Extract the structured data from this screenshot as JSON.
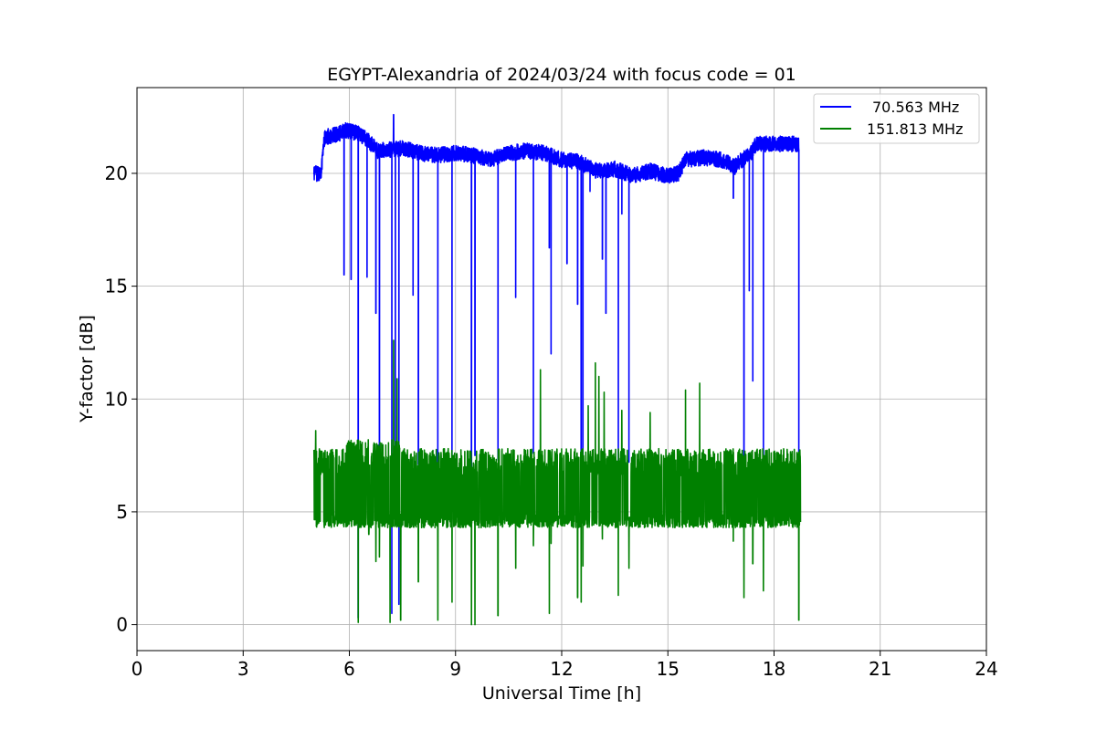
{
  "chart_data": {
    "type": "line",
    "title": "EGYPT-Alexandria of 2024/03/24 with focus code = 01",
    "xlabel": "Universal Time [h]",
    "ylabel": "Y-factor [dB]",
    "xlim": [
      0,
      24
    ],
    "ylim": [
      -1.15,
      23.8
    ],
    "xticks": [
      0,
      3,
      6,
      9,
      12,
      15,
      18,
      21,
      24
    ],
    "yticks": [
      0,
      5,
      10,
      15,
      20
    ],
    "grid": true,
    "legend_position": "top-right",
    "series": [
      {
        "name": "70.563 MHz",
        "color": "#0000ff",
        "baseline": [
          [
            5.0,
            20.0
          ],
          [
            5.2,
            20.0
          ],
          [
            5.3,
            21.6
          ],
          [
            5.6,
            21.7
          ],
          [
            5.9,
            21.9
          ],
          [
            6.2,
            21.8
          ],
          [
            6.5,
            21.5
          ],
          [
            6.8,
            21.0
          ],
          [
            7.5,
            21.1
          ],
          [
            8.0,
            20.9
          ],
          [
            8.5,
            20.8
          ],
          [
            9.0,
            20.9
          ],
          [
            9.5,
            20.8
          ],
          [
            10.0,
            20.6
          ],
          [
            10.5,
            20.9
          ],
          [
            11.0,
            21.0
          ],
          [
            11.5,
            20.9
          ],
          [
            12.0,
            20.6
          ],
          [
            12.5,
            20.5
          ],
          [
            13.0,
            20.1
          ],
          [
            13.5,
            20.2
          ],
          [
            14.0,
            19.9
          ],
          [
            14.5,
            20.1
          ],
          [
            15.0,
            19.9
          ],
          [
            15.3,
            20.0
          ],
          [
            15.5,
            20.6
          ],
          [
            16.0,
            20.7
          ],
          [
            16.5,
            20.6
          ],
          [
            16.9,
            20.3
          ],
          [
            17.0,
            20.5
          ],
          [
            17.3,
            20.8
          ],
          [
            17.5,
            21.3
          ],
          [
            18.0,
            21.3
          ],
          [
            18.7,
            21.3
          ]
        ],
        "noise_db": 0.35,
        "dips": [
          [
            5.85,
            15.5
          ],
          [
            6.05,
            15.3
          ],
          [
            6.25,
            0.3
          ],
          [
            6.5,
            15.4
          ],
          [
            6.75,
            13.8
          ],
          [
            6.85,
            7.3
          ],
          [
            7.2,
            0.5
          ],
          [
            7.3,
            7.0
          ],
          [
            7.4,
            0.9
          ],
          [
            7.8,
            14.6
          ],
          [
            7.95,
            7.1
          ],
          [
            8.5,
            7.0
          ],
          [
            8.9,
            7.4
          ],
          [
            9.45,
            7.0
          ],
          [
            9.55,
            7.5
          ],
          [
            10.2,
            7.3
          ],
          [
            10.7,
            14.5
          ],
          [
            11.2,
            7.6
          ],
          [
            11.65,
            16.7
          ],
          [
            11.7,
            12.0
          ],
          [
            12.15,
            16.0
          ],
          [
            12.45,
            14.2
          ],
          [
            12.55,
            7.6
          ],
          [
            12.6,
            7.0
          ],
          [
            12.8,
            19.2
          ],
          [
            13.15,
            16.2
          ],
          [
            13.25,
            13.8
          ],
          [
            13.6,
            7.1
          ],
          [
            13.7,
            18.2
          ],
          [
            13.9,
            7.2
          ],
          [
            16.85,
            18.9
          ],
          [
            17.15,
            7.3
          ],
          [
            17.3,
            14.8
          ],
          [
            17.4,
            10.8
          ],
          [
            17.7,
            7.3
          ],
          [
            18.7,
            7.1
          ]
        ],
        "spike": [
          7.25,
          22.6
        ]
      },
      {
        "name": "151.813 MHz",
        "color": "#008000",
        "range": [
          5.0,
          18.75
        ],
        "low_level_db": 4.6,
        "high_level_db": 7.2,
        "dips": [
          [
            6.25,
            0.1
          ],
          [
            6.55,
            4.0
          ],
          [
            6.75,
            2.8
          ],
          [
            6.85,
            3.0
          ],
          [
            7.15,
            0.1
          ],
          [
            7.25,
            2.2
          ],
          [
            7.45,
            0.2
          ],
          [
            7.95,
            1.9
          ],
          [
            8.5,
            0.2
          ],
          [
            8.9,
            1.0
          ],
          [
            9.45,
            0.0
          ],
          [
            9.55,
            0.0
          ],
          [
            10.2,
            0.4
          ],
          [
            10.7,
            2.5
          ],
          [
            11.2,
            3.5
          ],
          [
            11.65,
            0.5
          ],
          [
            11.7,
            3.6
          ],
          [
            12.45,
            1.2
          ],
          [
            12.55,
            1.0
          ],
          [
            12.6,
            2.6
          ],
          [
            13.15,
            3.8
          ],
          [
            13.6,
            1.3
          ],
          [
            13.9,
            2.5
          ],
          [
            16.85,
            3.7
          ],
          [
            17.15,
            1.2
          ],
          [
            17.4,
            2.7
          ],
          [
            17.7,
            1.5
          ],
          [
            18.7,
            0.2
          ]
        ],
        "spikes": [
          [
            5.05,
            8.6
          ],
          [
            7.25,
            12.6
          ],
          [
            7.35,
            10.9
          ],
          [
            12.75,
            9.7
          ],
          [
            12.95,
            11.6
          ],
          [
            13.05,
            11.0
          ],
          [
            13.2,
            10.3
          ],
          [
            14.5,
            9.4
          ],
          [
            15.5,
            10.4
          ],
          [
            15.9,
            10.7
          ],
          [
            11.4,
            11.3
          ],
          [
            13.7,
            9.5
          ]
        ]
      }
    ]
  }
}
